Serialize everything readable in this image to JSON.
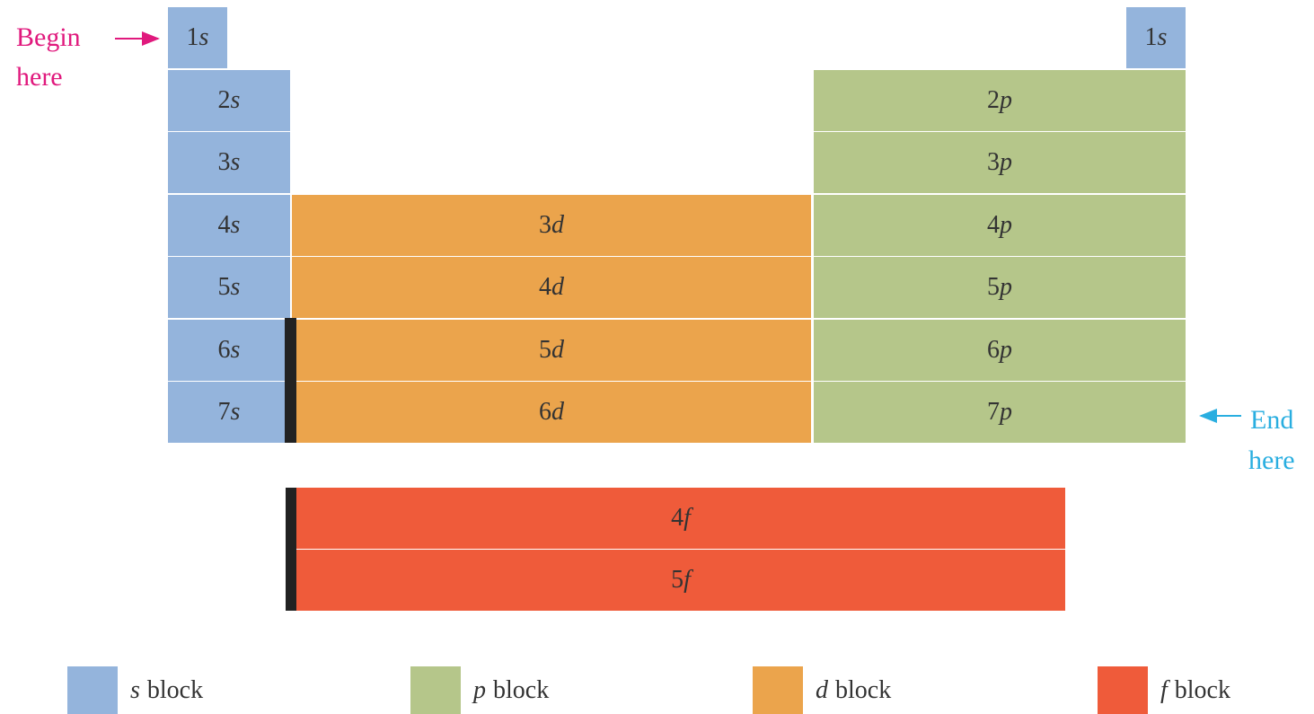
{
  "diagram": {
    "start_label": [
      "Begin",
      "here"
    ],
    "end_label": [
      "End",
      "here"
    ],
    "cells": [
      {
        "shell": "1",
        "sub": "s"
      },
      {
        "shell": "1",
        "sub": "s"
      },
      {
        "shell": "2",
        "sub": "s"
      },
      {
        "shell": "3",
        "sub": "s"
      },
      {
        "shell": "4",
        "sub": "s"
      },
      {
        "shell": "5",
        "sub": "s"
      },
      {
        "shell": "6",
        "sub": "s"
      },
      {
        "shell": "7",
        "sub": "s"
      },
      {
        "shell": "2",
        "sub": "p"
      },
      {
        "shell": "3",
        "sub": "p"
      },
      {
        "shell": "4",
        "sub": "p"
      },
      {
        "shell": "5",
        "sub": "p"
      },
      {
        "shell": "6",
        "sub": "p"
      },
      {
        "shell": "7",
        "sub": "p"
      },
      {
        "shell": "3",
        "sub": "d"
      },
      {
        "shell": "4",
        "sub": "d"
      },
      {
        "shell": "5",
        "sub": "d"
      },
      {
        "shell": "6",
        "sub": "d"
      },
      {
        "shell": "4",
        "sub": "f"
      },
      {
        "shell": "5",
        "sub": "f"
      }
    ],
    "legend": [
      {
        "letter": "s",
        "text": "block"
      },
      {
        "letter": "p",
        "text": "block"
      },
      {
        "letter": "d",
        "text": "block"
      },
      {
        "letter": "f",
        "text": "block"
      }
    ]
  }
}
